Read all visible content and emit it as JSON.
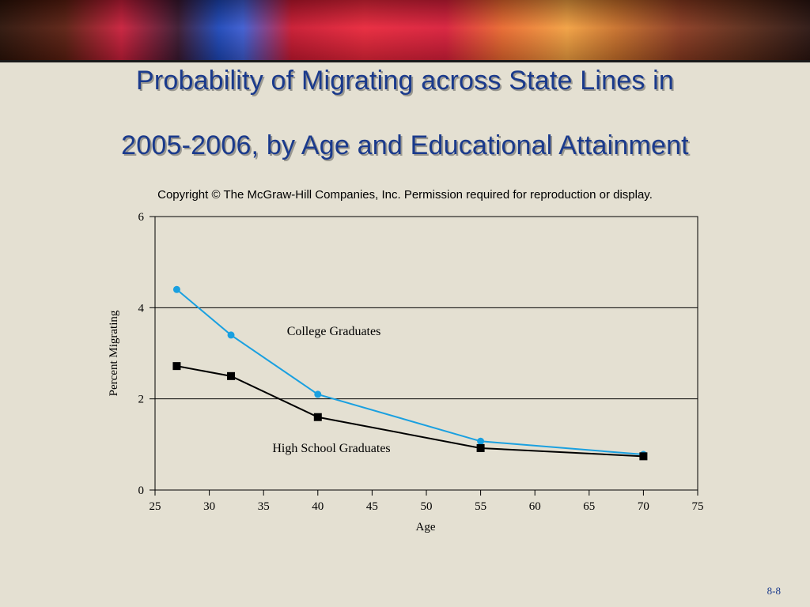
{
  "slide": {
    "title_line1": "Probability of Migrating across State Lines in",
    "title_line2": "2005-2006, by Age and Educational Attainment",
    "copyright": "Copyright © The McGraw-Hill Companies, Inc. Permission required for reproduction or display.",
    "slide_number": "8-8"
  },
  "chart_data": {
    "type": "line",
    "title": "",
    "xlabel": "Age",
    "ylabel": "Percent Migrating",
    "xlim": [
      25,
      75
    ],
    "ylim": [
      0,
      6
    ],
    "xticks": [
      25,
      30,
      35,
      40,
      45,
      50,
      55,
      60,
      65,
      70,
      75
    ],
    "yticks": [
      0,
      2,
      4,
      6
    ],
    "grid": "horizontal at y ticks",
    "series": [
      {
        "name": "College Graduates",
        "color": "#1aa0e0",
        "marker": "circle",
        "x": [
          27,
          32,
          40,
          55,
          70
        ],
        "y": [
          4.4,
          3.4,
          2.1,
          1.07,
          0.78
        ]
      },
      {
        "name": "High School Graduates",
        "color": "#000000",
        "marker": "square",
        "x": [
          27,
          32,
          40,
          55,
          70
        ],
        "y": [
          2.72,
          2.5,
          1.6,
          0.92,
          0.74
        ]
      }
    ],
    "annotations": [
      "College Graduates",
      "High School Graduates"
    ]
  }
}
